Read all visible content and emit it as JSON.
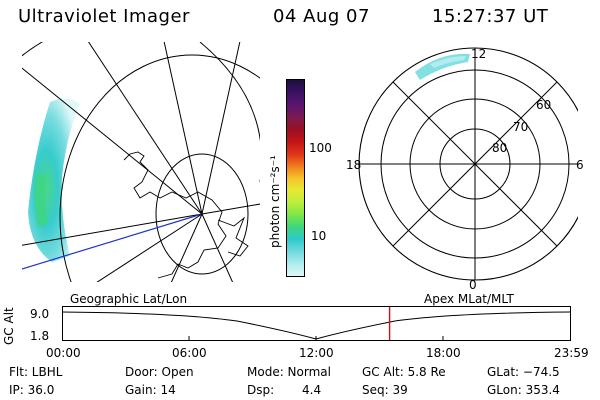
{
  "header": {
    "instrument": "Ultraviolet Imager",
    "date": "04 Aug 07",
    "time": "15:27:37 UT"
  },
  "colorbar": {
    "label": "photon cm⁻²s⁻¹",
    "ticks": [
      "100",
      "10"
    ],
    "colors": [
      "#1b0f3b",
      "#3a1064",
      "#5c156e",
      "#7c1a50",
      "#9a1026",
      "#c01216",
      "#e0361a",
      "#f07d1c",
      "#f5c22a",
      "#e8e833",
      "#b8ee3b",
      "#79e64a",
      "#3fd680",
      "#2dc9c9",
      "#74dbe0",
      "#b2ecee",
      "#dff7f8"
    ]
  },
  "left_map": {
    "label": "Geographic Lat/Lon"
  },
  "polar": {
    "label": "Apex MLat/MLT",
    "mlt_labels": {
      "top": "12",
      "left": "18",
      "right": "6",
      "bottom": "0"
    },
    "lat_labels": [
      "60",
      "70",
      "80"
    ]
  },
  "timeline": {
    "ylabel": "GC Alt",
    "yticks": [
      "9.0",
      "1.8"
    ],
    "xticks": [
      "00:00",
      "06:00",
      "12:00",
      "18:00",
      "23:59"
    ],
    "current_fraction": 0.6442
  },
  "footer": {
    "flt": "Flt: LBHL",
    "ip": "IP: 36.0",
    "door": "Door: Open",
    "gain": "Gain: 14",
    "mode": "Mode: Normal",
    "dsp_label": "Dsp:",
    "dsp_value": "4.4",
    "gcalt": "GC Alt: 5.8 Re",
    "seq": "Seq: 39",
    "glat": "GLat: −74.5",
    "glon": "GLon: 353.4"
  },
  "colors": {
    "current_time_line": "#d01010",
    "terminator_line": "#2233cc"
  }
}
